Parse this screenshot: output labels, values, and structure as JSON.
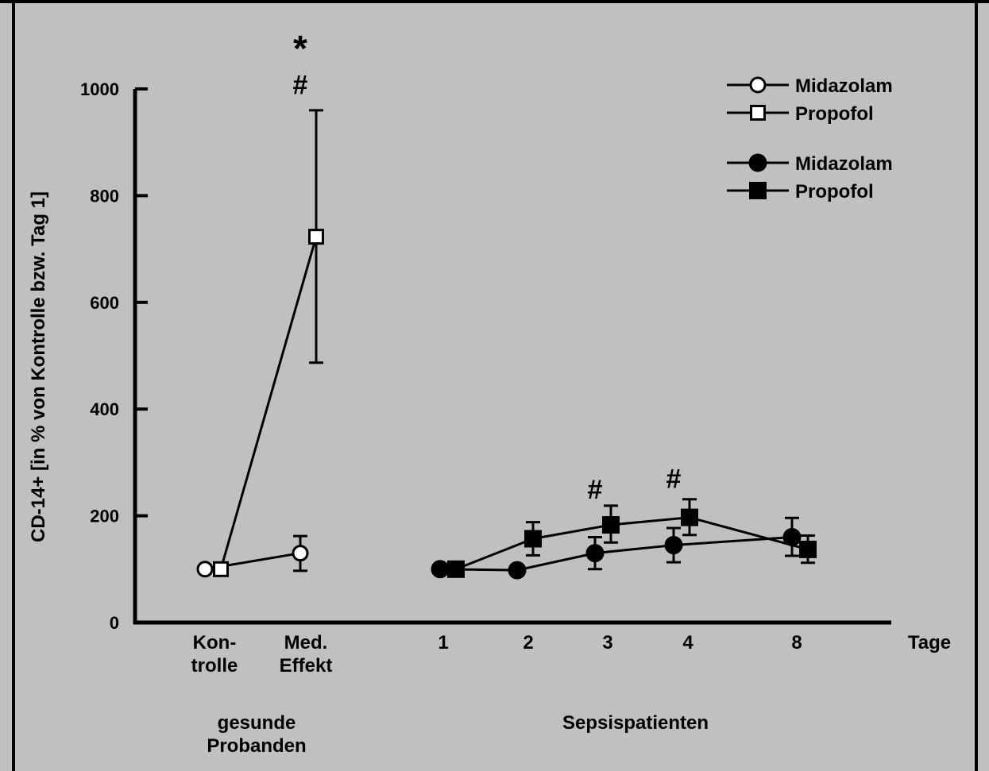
{
  "chart_data": {
    "type": "line",
    "ylabel": "CD-14+ [in % von Kontrolle bzw. Tag 1]",
    "ylim": [
      0,
      1000
    ],
    "yticks": [
      0,
      200,
      400,
      600,
      800,
      1000
    ],
    "x_tick_labels": [
      {
        "lines": [
          "Kon-",
          "trolle"
        ]
      },
      {
        "lines": [
          "Med.",
          "Effekt"
        ]
      },
      {
        "lines": [
          "1"
        ]
      },
      {
        "lines": [
          "2"
        ]
      },
      {
        "lines": [
          "3"
        ]
      },
      {
        "lines": [
          "4"
        ]
      },
      {
        "lines": [
          "8"
        ]
      },
      {
        "lines": [
          "Tage"
        ]
      }
    ],
    "group_labels": [
      {
        "lines": [
          "gesunde",
          "Probanden"
        ]
      },
      {
        "lines": [
          "Sepsispatienten"
        ]
      }
    ],
    "legend": [
      {
        "label": "Midazolam",
        "marker": "circle",
        "filled": false
      },
      {
        "label": "Propofol",
        "marker": "square",
        "filled": false
      },
      {
        "label": "Midazolam",
        "marker": "circle",
        "filled": true
      },
      {
        "label": "Propofol",
        "marker": "square",
        "filled": true
      }
    ],
    "series": [
      {
        "name": "Midazolam",
        "group": "gesunde Probanden",
        "marker": "circle",
        "filled": false,
        "x": [
          "Kontrolle",
          "Med. Effekt"
        ],
        "values": [
          100,
          130
        ],
        "err_high": [
          100,
          162
        ],
        "err_low": [
          100,
          97
        ]
      },
      {
        "name": "Propofol",
        "group": "gesunde Probanden",
        "marker": "square",
        "filled": false,
        "x": [
          "Kontrolle",
          "Med. Effekt"
        ],
        "values": [
          100,
          723
        ],
        "err_high": [
          100,
          960
        ],
        "err_low": [
          100,
          487
        ]
      },
      {
        "name": "Midazolam",
        "group": "Sepsispatienten",
        "marker": "circle",
        "filled": true,
        "x": [
          "1",
          "2",
          "3",
          "4",
          "8"
        ],
        "values": [
          100,
          98,
          130,
          145,
          160
        ],
        "err_high": [
          100,
          98,
          160,
          177,
          196
        ],
        "err_low": [
          100,
          98,
          100,
          113,
          125
        ]
      },
      {
        "name": "Propofol",
        "group": "Sepsispatienten",
        "marker": "square",
        "filled": true,
        "x": [
          "1",
          "2",
          "3",
          "4",
          "8"
        ],
        "values": [
          100,
          157,
          183,
          197,
          137
        ],
        "err_high": [
          100,
          188,
          219,
          231,
          163
        ],
        "err_low": [
          100,
          126,
          150,
          164,
          112
        ]
      }
    ],
    "annotations": [
      {
        "text": "*",
        "x": "Med. Effekt",
        "y": 1070
      },
      {
        "text": "#",
        "x": "Med. Effekt",
        "y": 1008
      },
      {
        "text": "#",
        "x": "3",
        "y": 250
      },
      {
        "text": "#",
        "x": "4",
        "y": 270
      }
    ],
    "colors": {
      "background": "#c0c0c0",
      "frame": "#000000",
      "ink": "#000000",
      "open_fill": "#ffffff"
    }
  }
}
